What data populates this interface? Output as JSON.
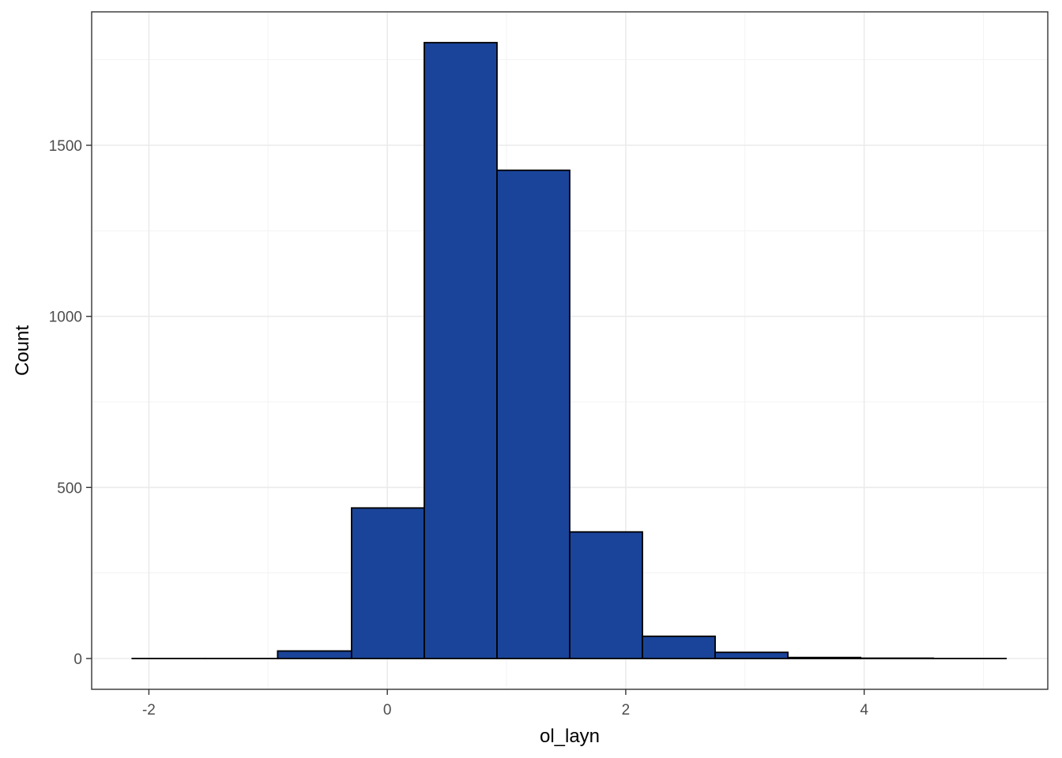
{
  "chart_data": {
    "type": "bar",
    "subtype": "histogram",
    "xlabel": "ol_layn",
    "ylabel": "Count",
    "xlim": [
      -2.48,
      5.54
    ],
    "ylim": [
      -90,
      1890
    ],
    "x_ticks": [
      -2,
      0,
      2,
      4
    ],
    "x_tick_labels": [
      "-2",
      "0",
      "2",
      "4"
    ],
    "y_ticks": [
      0,
      500,
      1000,
      1500
    ],
    "y_tick_labels": [
      "0",
      "500",
      "1000",
      "1500"
    ],
    "x_minor_ticks": [
      -1,
      1,
      3,
      5
    ],
    "y_minor_ticks": [
      250,
      750,
      1250,
      1750
    ],
    "bins": [
      {
        "x0": -2.14,
        "x1": -1.53,
        "count": 0
      },
      {
        "x0": -1.53,
        "x1": -0.92,
        "count": 0
      },
      {
        "x0": -0.92,
        "x1": -0.3,
        "count": 22
      },
      {
        "x0": -0.3,
        "x1": 0.31,
        "count": 440
      },
      {
        "x0": 0.31,
        "x1": 0.92,
        "count": 1800
      },
      {
        "x0": 0.92,
        "x1": 1.53,
        "count": 1427
      },
      {
        "x0": 1.53,
        "x1": 2.14,
        "count": 370
      },
      {
        "x0": 2.14,
        "x1": 2.75,
        "count": 65
      },
      {
        "x0": 2.75,
        "x1": 3.36,
        "count": 18
      },
      {
        "x0": 3.36,
        "x1": 3.97,
        "count": 3
      },
      {
        "x0": 3.97,
        "x1": 4.58,
        "count": 1
      },
      {
        "x0": 4.58,
        "x1": 5.19,
        "count": 0
      }
    ],
    "bar_fill": "#1a4499",
    "bar_outline": "#000000",
    "grid": true,
    "legend": "none",
    "theme": "bw"
  }
}
